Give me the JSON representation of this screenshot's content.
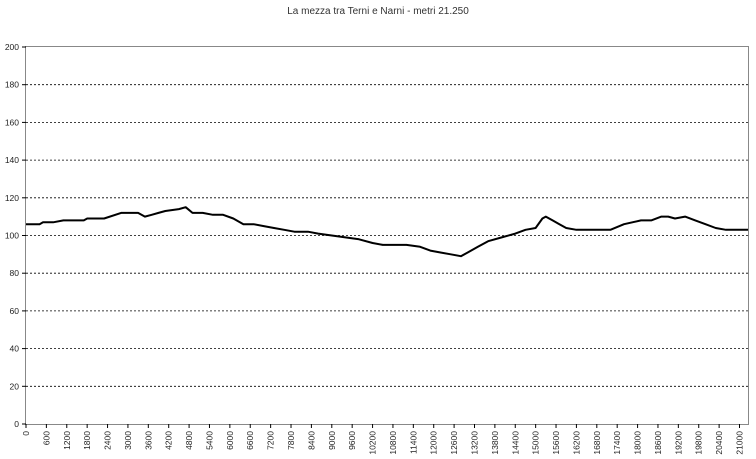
{
  "chart_data": {
    "type": "line",
    "title": "La mezza tra Terni e Narni - metri 21.250",
    "xlabel": "",
    "ylabel": "",
    "xlim": [
      0,
      21250
    ],
    "ylim": [
      0,
      200
    ],
    "y_ticks": [
      0,
      20,
      40,
      60,
      80,
      100,
      120,
      140,
      160,
      180,
      200
    ],
    "x_ticks": [
      0,
      600,
      1200,
      1800,
      2400,
      3000,
      3600,
      4200,
      4800,
      5400,
      6000,
      6600,
      7200,
      7800,
      8400,
      9000,
      9600,
      10200,
      10800,
      11400,
      12000,
      12600,
      13200,
      13800,
      14400,
      15000,
      15600,
      16200,
      16800,
      17400,
      18000,
      18600,
      19200,
      19800,
      20400,
      21000
    ],
    "grid": "horizontal dashed",
    "legend": "none",
    "series": [
      {
        "color": "#000000",
        "x": [
          0,
          400,
          500,
          800,
          1100,
          1200,
          1700,
          1800,
          2300,
          2800,
          3100,
          3300,
          3500,
          3700,
          3900,
          4100,
          4500,
          4700,
          4900,
          5200,
          5500,
          5800,
          6100,
          6400,
          6700,
          7000,
          7300,
          7600,
          7900,
          8300,
          8600,
          9000,
          9400,
          9800,
          10200,
          10500,
          10800,
          11200,
          11600,
          11900,
          12200,
          12500,
          12800,
          13000,
          13300,
          13600,
          14000,
          14400,
          14700,
          15000,
          15200,
          15300,
          15400,
          15500,
          15700,
          15900,
          16200,
          16600,
          17000,
          17200,
          17600,
          18100,
          18400,
          18700,
          18900,
          19100,
          19400,
          19700,
          20000,
          20300,
          20600,
          21000,
          21250
        ],
        "values": [
          106,
          106,
          107,
          107,
          108,
          108,
          108,
          109,
          109,
          112,
          112,
          112,
          110,
          111,
          112,
          113,
          114,
          115,
          112,
          112,
          111,
          111,
          109,
          106,
          106,
          105,
          104,
          103,
          102,
          102,
          101,
          100,
          99,
          98,
          96,
          95,
          95,
          95,
          94,
          92,
          91,
          90,
          89,
          91,
          94,
          97,
          99,
          101,
          103,
          104,
          109,
          110,
          109,
          108,
          106,
          104,
          103,
          103,
          103,
          103,
          106,
          108,
          108,
          110,
          110,
          109,
          110,
          108,
          106,
          104,
          103,
          103,
          103
        ]
      }
    ]
  }
}
